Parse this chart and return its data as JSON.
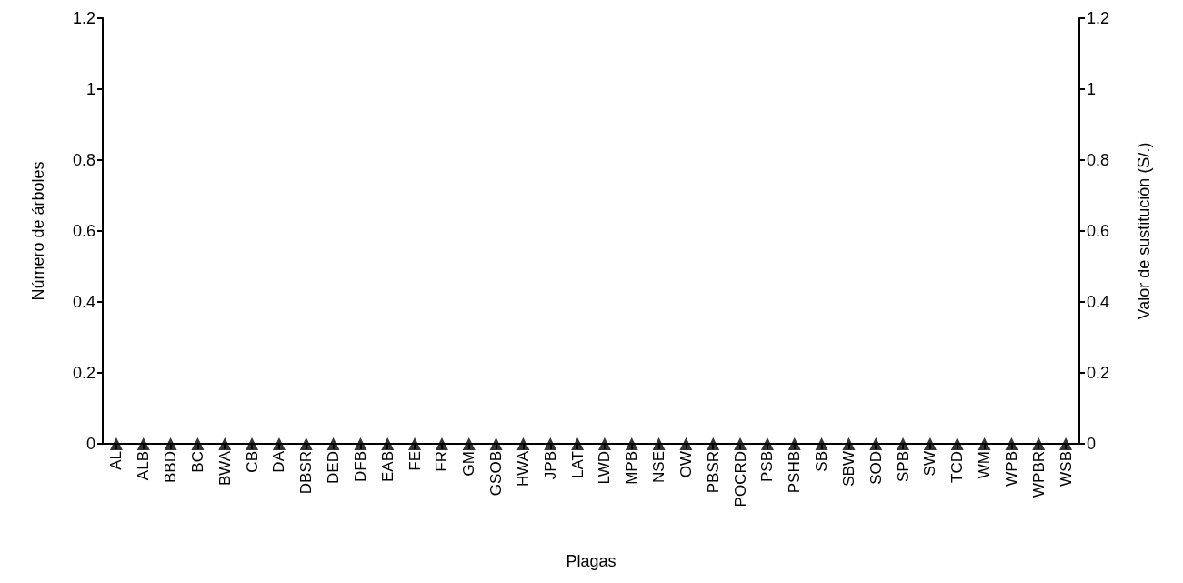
{
  "chart_data": {
    "type": "scatter",
    "xlabel": "Plagas",
    "ylabel": "Número de árboles",
    "y2label": "Valor de sustitución (S/.)",
    "categories": [
      "AL",
      "ALB",
      "BBD",
      "BC",
      "BWA",
      "CB",
      "DA",
      "DBSR",
      "DED",
      "DFB",
      "EAB",
      "FE",
      "FR",
      "GM",
      "GSOB",
      "HWA",
      "JPB",
      "LAT",
      "LWD",
      "MPB",
      "NSE",
      "OW",
      "PBSR",
      "POCRD",
      "PSB",
      "PSHB",
      "SB",
      "SBW",
      "SOD",
      "SPB",
      "SW",
      "TCD",
      "WM",
      "WPB",
      "WPBR",
      "WSB"
    ],
    "series": [
      {
        "color": "#000000",
        "values": [
          0,
          0,
          0,
          0,
          0,
          0,
          0,
          0,
          0,
          0,
          0,
          0,
          0,
          0,
          0,
          0,
          0,
          0,
          0,
          0,
          0,
          0,
          0,
          0,
          0,
          0,
          0,
          0,
          0,
          0,
          0,
          0,
          0,
          0,
          0,
          0
        ]
      }
    ],
    "marker": "triangle",
    "ylim": [
      0,
      1.2
    ],
    "yticks": [
      0,
      0.2,
      0.4,
      0.6,
      0.8,
      1,
      1.2
    ],
    "y2lim": [
      0,
      1.2
    ],
    "y2ticks": [
      0,
      0.2,
      0.4,
      0.6,
      0.8,
      1,
      1.2
    ]
  }
}
